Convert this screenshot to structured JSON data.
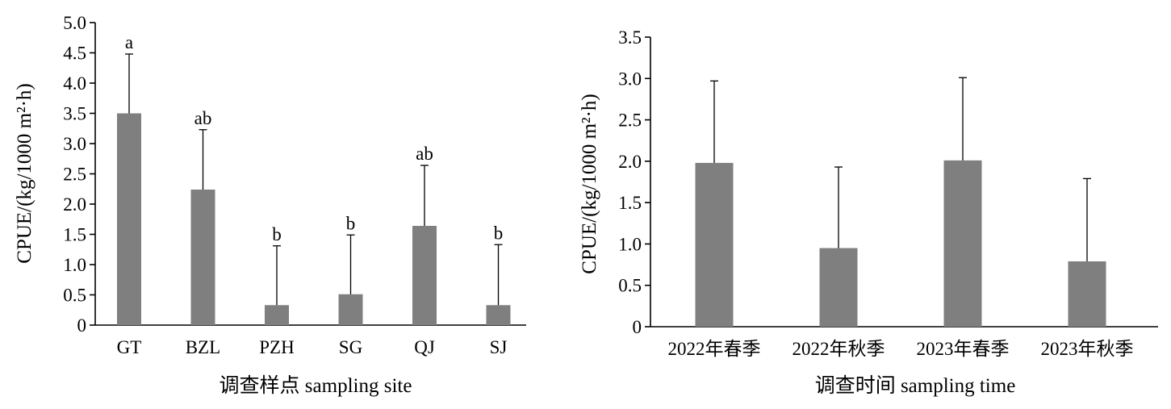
{
  "chart_data": [
    {
      "type": "bar",
      "categories": [
        "GT",
        "BZL",
        "PZH",
        "SG",
        "QJ",
        "SJ"
      ],
      "values": [
        3.5,
        2.24,
        0.33,
        0.51,
        1.64,
        0.33
      ],
      "errors": [
        0.98,
        0.99,
        0.98,
        0.98,
        1.0,
        1.0
      ],
      "significance": [
        "a",
        "ab",
        "b",
        "b",
        "ab",
        "b"
      ],
      "xlabel": "调查样点 sampling site",
      "ylabel": "CPUE/(kg/1000 m²·h)",
      "ylim": [
        0,
        5.0
      ],
      "yticks": [
        "0",
        "0.5",
        "1.0",
        "1.5",
        "2.0",
        "2.5",
        "3.0",
        "3.5",
        "4.0",
        "4.5",
        "5.0"
      ],
      "bar_color": "#7f7f7f",
      "grid": false
    },
    {
      "type": "bar",
      "categories": [
        "2022年春季",
        "2022年秋季",
        "2023年春季",
        "2023年秋季"
      ],
      "values": [
        1.98,
        0.95,
        2.01,
        0.79
      ],
      "errors": [
        0.99,
        0.98,
        1.0,
        1.0
      ],
      "xlabel": "调查时间 sampling time",
      "ylabel": "CPUE/(kg/1000 m²·h)",
      "ylim": [
        0,
        3.5
      ],
      "yticks": [
        "0",
        "0.5",
        "1.0",
        "1.5",
        "2.0",
        "2.5",
        "3.0",
        "3.5"
      ],
      "bar_color": "#7f7f7f",
      "grid": false
    }
  ]
}
